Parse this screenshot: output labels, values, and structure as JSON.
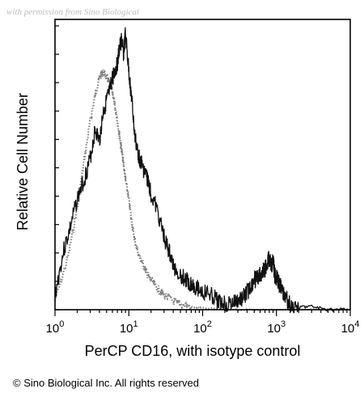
{
  "watermark": "with permission from Sino Biological",
  "copyright": "© Sino Biological Inc. All rights reserved",
  "chart_data": {
    "type": "area",
    "title": "",
    "xlabel": "PerCP CD16, with isotype control",
    "ylabel": "Relative Cell Number",
    "xscale": "log",
    "xlim": [
      1,
      10000
    ],
    "ylim": [
      0,
      100
    ],
    "xticks": [
      {
        "base": "10",
        "exp": "0",
        "value": 1
      },
      {
        "base": "10",
        "exp": "1",
        "value": 10
      },
      {
        "base": "10",
        "exp": "2",
        "value": 100
      },
      {
        "base": "10",
        "exp": "3",
        "value": 1000
      },
      {
        "base": "10",
        "exp": "4",
        "value": 10000
      }
    ],
    "grid": false,
    "series": [
      {
        "role": "stained",
        "color": "#111111",
        "x": [
          1,
          1.3,
          1.6,
          2,
          2.5,
          3,
          3.5,
          4,
          4.5,
          5,
          5.5,
          6,
          6.5,
          7,
          7.5,
          8,
          8.5,
          9,
          10,
          11,
          12,
          13,
          14,
          16,
          18,
          20,
          25,
          30,
          35,
          40,
          50,
          60,
          70,
          80,
          100,
          130,
          160,
          200,
          250,
          300,
          350,
          400,
          450,
          500,
          550,
          600,
          650,
          700,
          750,
          800,
          850,
          900,
          950,
          1000,
          1100,
          1200,
          1300,
          1500,
          2000,
          3000,
          5000,
          10000
        ],
        "y": [
          5,
          20,
          28,
          38,
          45,
          52,
          62,
          58,
          68,
          72,
          75,
          80,
          82,
          85,
          90,
          93,
          88,
          95,
          82,
          72,
          60,
          55,
          52,
          48,
          45,
          40,
          33,
          25,
          20,
          15,
          12,
          10,
          9,
          8,
          6,
          5,
          3,
          2,
          2,
          3,
          4,
          6,
          8,
          10,
          11,
          12,
          13,
          14,
          16,
          18,
          15,
          17,
          12,
          11,
          9,
          7,
          5,
          2,
          1,
          1,
          0,
          0
        ]
      },
      {
        "role": "isotype control",
        "color": "#7a7a7a",
        "x": [
          1,
          1.5,
          2,
          2.5,
          3,
          3.5,
          4,
          4.5,
          5,
          5.5,
          6,
          6.5,
          7,
          7.5,
          8,
          8.5,
          9,
          10,
          11,
          12,
          14,
          16,
          18,
          20,
          25,
          30,
          40,
          50,
          70,
          100,
          300,
          1000,
          10000
        ],
        "y": [
          3,
          18,
          35,
          52,
          65,
          74,
          80,
          82,
          80,
          78,
          75,
          70,
          65,
          60,
          55,
          50,
          45,
          38,
          30,
          24,
          18,
          15,
          12,
          10,
          7,
          5,
          3,
          2,
          1,
          0.5,
          0,
          0,
          0
        ]
      }
    ]
  }
}
